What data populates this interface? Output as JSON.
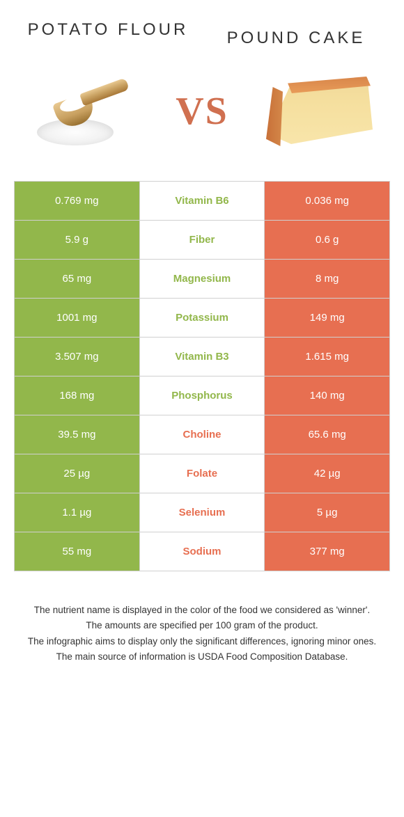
{
  "left_food": {
    "title": "POTATO FLOUR"
  },
  "right_food": {
    "title": "POUND CAKE"
  },
  "vs_label": "VS",
  "colors": {
    "left": "#92b74b",
    "right": "#e76f51",
    "row_border": "#d0d0d0",
    "left_text": "#ffffff",
    "right_text": "#ffffff",
    "background": "#ffffff"
  },
  "rows": [
    {
      "nutrient": "Vitamin B6",
      "left": "0.769 mg",
      "right": "0.036 mg",
      "winner": "left"
    },
    {
      "nutrient": "Fiber",
      "left": "5.9 g",
      "right": "0.6 g",
      "winner": "left"
    },
    {
      "nutrient": "Magnesium",
      "left": "65 mg",
      "right": "8 mg",
      "winner": "left"
    },
    {
      "nutrient": "Potassium",
      "left": "1001 mg",
      "right": "149 mg",
      "winner": "left"
    },
    {
      "nutrient": "Vitamin B3",
      "left": "3.507 mg",
      "right": "1.615 mg",
      "winner": "left"
    },
    {
      "nutrient": "Phosphorus",
      "left": "168 mg",
      "right": "140 mg",
      "winner": "left"
    },
    {
      "nutrient": "Choline",
      "left": "39.5 mg",
      "right": "65.6 mg",
      "winner": "right"
    },
    {
      "nutrient": "Folate",
      "left": "25 µg",
      "right": "42 µg",
      "winner": "right"
    },
    {
      "nutrient": "Selenium",
      "left": "1.1 µg",
      "right": "5 µg",
      "winner": "right"
    },
    {
      "nutrient": "Sodium",
      "left": "55 mg",
      "right": "377 mg",
      "winner": "right"
    }
  ],
  "footer": {
    "line1": "The nutrient name is displayed in the color of the food we considered as 'winner'.",
    "line2": "The amounts are specified per 100 gram of the product.",
    "line3": "The infographic aims to display only the significant differences, ignoring minor ones.",
    "line4": "The main source of information is USDA Food Composition Database."
  }
}
